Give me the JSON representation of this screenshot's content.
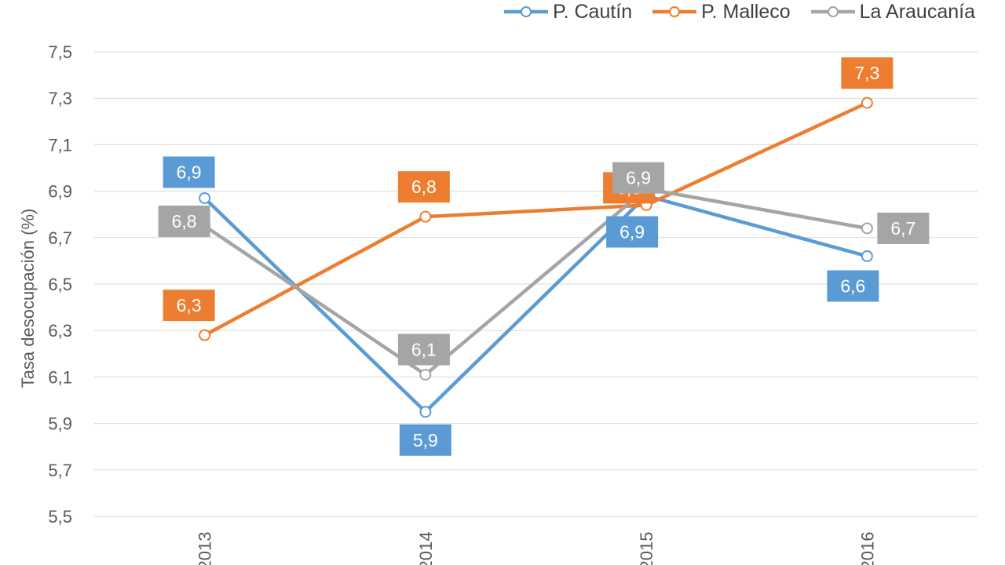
{
  "chart_data": {
    "type": "line",
    "x": [
      "2013",
      "2014",
      "2015",
      "2016"
    ],
    "series": [
      {
        "name": "P. Cautín",
        "values": [
          6.87,
          5.95,
          6.88,
          6.62
        ],
        "labels": [
          "6,9",
          "5,9",
          "6,9",
          "6,6"
        ],
        "color": "#5B9BD5"
      },
      {
        "name": "P. Malleco",
        "values": [
          6.28,
          6.79,
          6.84,
          7.28
        ],
        "labels": [
          "6,3",
          "6,8",
          "6,8",
          "7,3"
        ],
        "color": "#ED7D31"
      },
      {
        "name": "La Araucanía",
        "values": [
          6.75,
          6.11,
          6.91,
          6.74
        ],
        "labels": [
          "6,8",
          "6,1",
          "6,9",
          "6,7"
        ],
        "color": "#A5A5A5"
      }
    ],
    "ylabel": "Tasa desocupación (%)",
    "ylim": [
      5.5,
      7.5
    ],
    "yticks": [
      "5,5",
      "5,7",
      "5,9",
      "6,1",
      "6,3",
      "6,5",
      "6,7",
      "6,9",
      "7,1",
      "7,3",
      "7,5"
    ],
    "grid": true,
    "legend": "top-right"
  }
}
